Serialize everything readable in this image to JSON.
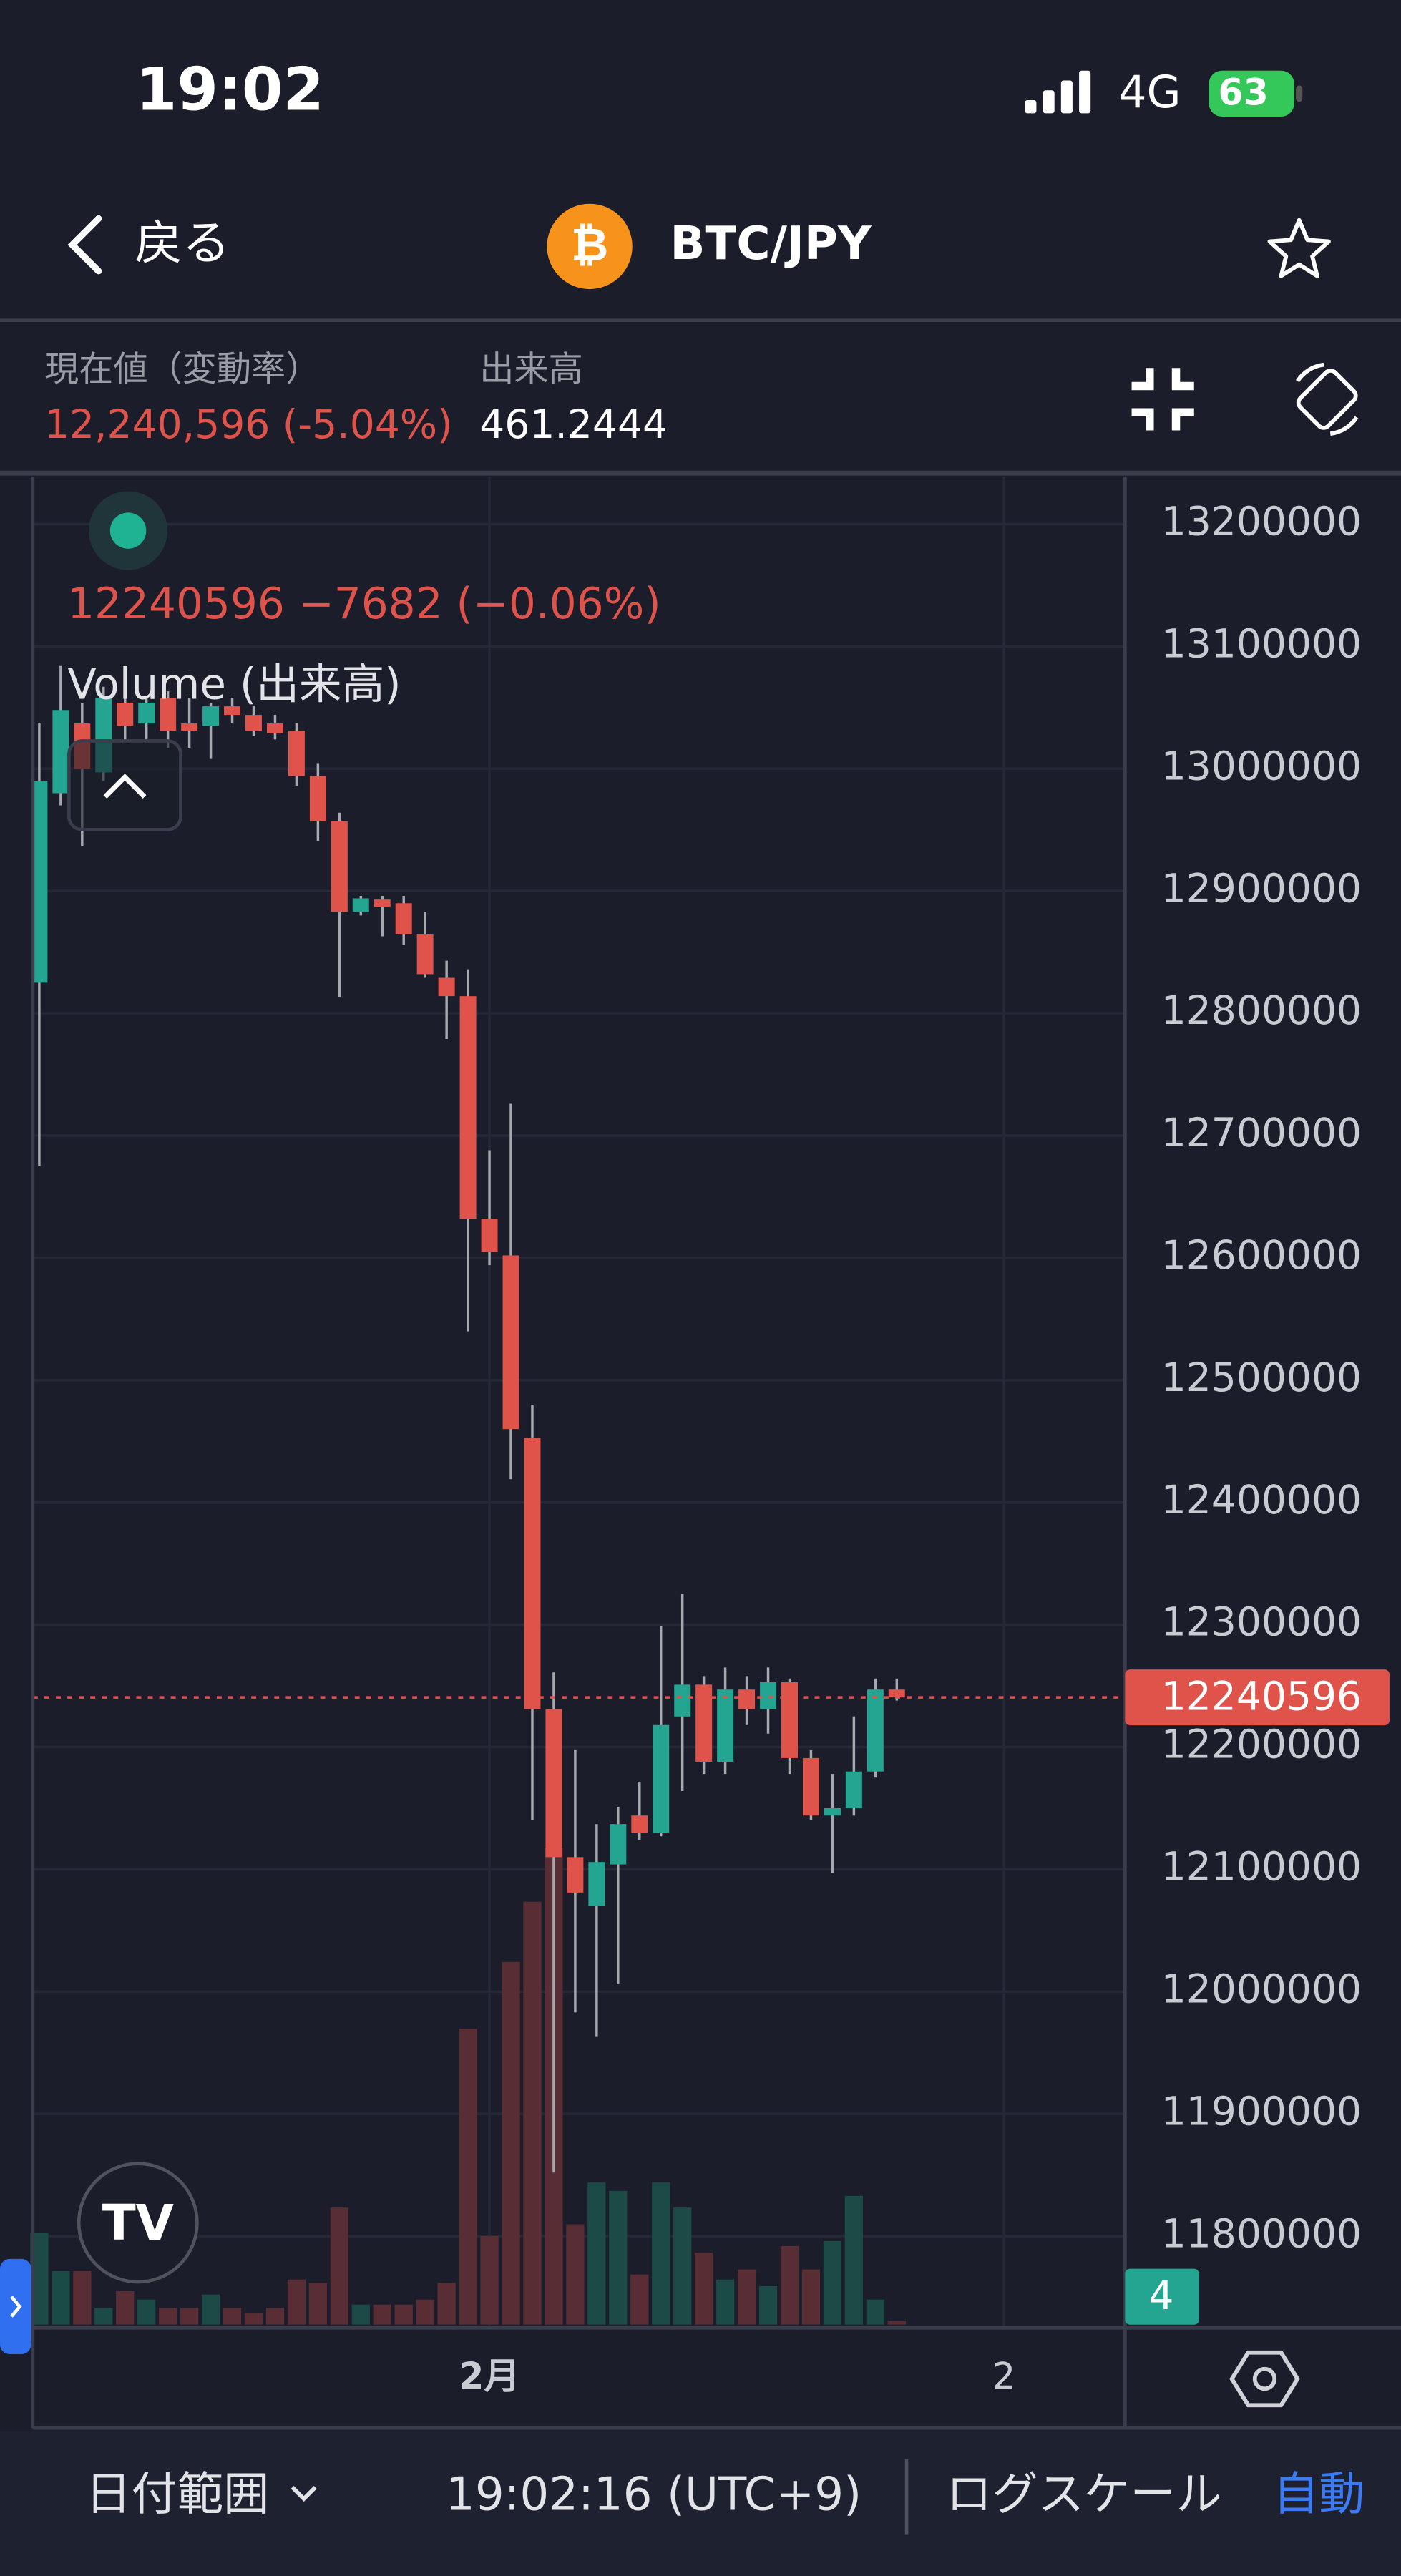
{
  "status_bar": {
    "time": "19:02",
    "network": "4G",
    "battery": "63"
  },
  "header": {
    "back": "戻る",
    "pair": "BTC/JPY"
  },
  "stats": {
    "price_label": "現在値（変動率）",
    "price": "12,240,596 (-5.04%)",
    "volume_label": "出来高",
    "volume": "461.2444"
  },
  "chart_data": {
    "type": "candlestick",
    "legend": "12240596  −7682 (−0.06%)",
    "volume_label": "Volume (出来高)",
    "volume_badge": "4",
    "last_price": 12240596,
    "open": [
      12825000,
      12980000,
      13037000,
      12997000,
      13054000,
      13037000,
      13058000,
      13037000,
      13035000,
      13051000,
      13044000,
      13037000,
      13031000,
      12994000,
      12957000,
      12883000,
      12893000,
      12890000,
      12865000,
      12829000,
      12814000,
      12632000,
      12602000,
      12453000,
      12231000,
      12110000,
      12070000,
      12104000,
      12144000,
      12130000,
      12225000,
      12251000,
      12188000,
      12247000,
      12231000,
      12253000,
      12191000,
      12144000,
      12150000,
      12180000,
      12247000
    ],
    "high": [
      13037000,
      13084000,
      13054000,
      13067000,
      13064000,
      13058000,
      13064000,
      13058000,
      13054000,
      13058000,
      13051000,
      13044000,
      13037000,
      13004000,
      12964000,
      12896000,
      12896000,
      12896000,
      12883000,
      12843000,
      12836000,
      12688000,
      12726000,
      12480000,
      12261000,
      12198000,
      12137000,
      12151000,
      12171000,
      12299000,
      12325000,
      12258000,
      12265000,
      12258000,
      12265000,
      12256000,
      12198000,
      12178000,
      12225000,
      12256000,
      12256000
    ],
    "low": [
      12675000,
      12970000,
      12937000,
      12990000,
      13024000,
      13024000,
      13017000,
      13017000,
      13008000,
      13037000,
      13027000,
      13024000,
      12986000,
      12941000,
      12813000,
      12880000,
      12863000,
      12856000,
      12829000,
      12779000,
      12540000,
      12594000,
      12419000,
      12140000,
      11852000,
      11983000,
      11963000,
      12006000,
      12124000,
      12127000,
      12164000,
      12178000,
      12178000,
      12218000,
      12211000,
      12178000,
      12140000,
      12097000,
      12144000,
      12175000,
      12238000
    ],
    "close": [
      12990000,
      13048000,
      13000000,
      13058000,
      13035000,
      13054000,
      13031000,
      13031000,
      13051000,
      13044000,
      13031000,
      13029000,
      12994000,
      12957000,
      12883000,
      12894000,
      12887000,
      12865000,
      12832000,
      12814000,
      12632000,
      12605000,
      12460000,
      12231000,
      12110000,
      12081000,
      12106000,
      12137000,
      12130000,
      12218000,
      12251000,
      12188000,
      12247000,
      12231000,
      12253000,
      12191000,
      12144000,
      12150000,
      12180000,
      12247000,
      12240596
    ],
    "volume": [
      55,
      32,
      32,
      10,
      20,
      15,
      10,
      10,
      18,
      10,
      7,
      10,
      27,
      25,
      70,
      12,
      12,
      12,
      15,
      25,
      177,
      53,
      217,
      253,
      285,
      60,
      85,
      80,
      30,
      85,
      70,
      43,
      27,
      33,
      23,
      47,
      33,
      50,
      77,
      15,
      2
    ],
    "ylim": [
      11725000,
      13239000
    ],
    "yticks": [
      11800000,
      11900000,
      12000000,
      12100000,
      12200000,
      12300000,
      12400000,
      12500000,
      12600000,
      12700000,
      12800000,
      12900000,
      13000000,
      13100000,
      13200000
    ],
    "xlim": [
      -0.3,
      50.65
    ],
    "xticks": [
      {
        "value": 21,
        "label": "2月"
      },
      {
        "value": 45,
        "label": "2"
      }
    ],
    "up_color": "#23a592",
    "down_color": "#e0534a",
    "up_volume_color": "#1c4a46",
    "down_volume_color": "#582d33",
    "grid": true
  },
  "footer": {
    "date_range": "日付範囲",
    "timestamp": "19:02:16 (UTC+9)",
    "log_scale": "ログスケール",
    "auto": "自動"
  }
}
